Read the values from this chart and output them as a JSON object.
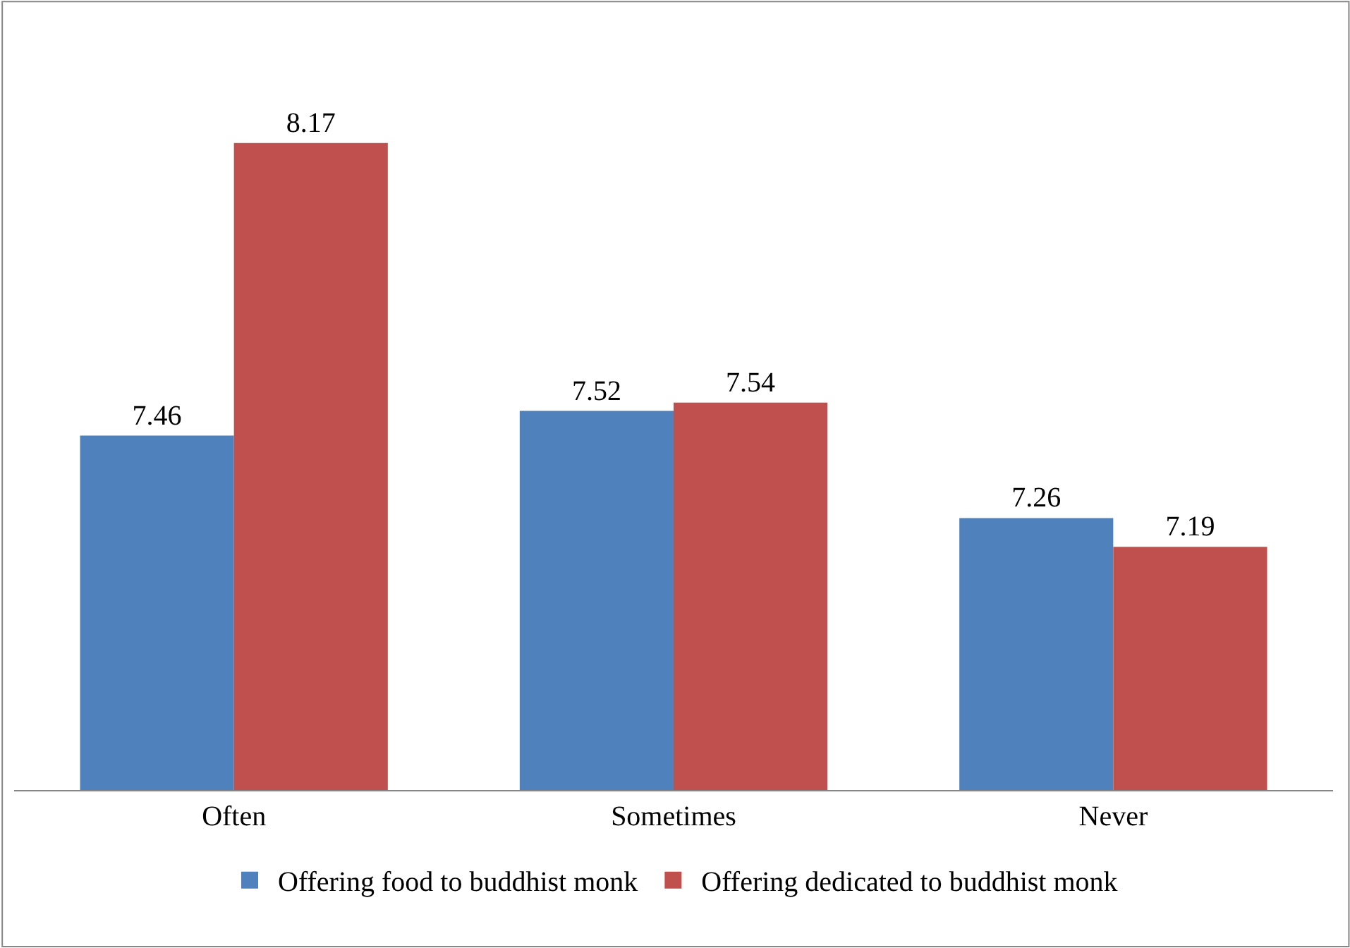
{
  "chart_data": {
    "type": "bar",
    "categories": [
      "Often",
      "Sometimes",
      "Never"
    ],
    "series": [
      {
        "name": "Offering food to buddhist monk",
        "color": "#4f81bd",
        "values": [
          7.46,
          7.52,
          7.26
        ]
      },
      {
        "name": "Offering dedicated to buddhist monk",
        "color": "#c0504d",
        "values": [
          8.17,
          7.54,
          7.19
        ]
      }
    ],
    "ylim": [
      6.6,
      8.5
    ],
    "tick_labels": "x",
    "data_labels": true,
    "legend": "bottom"
  }
}
